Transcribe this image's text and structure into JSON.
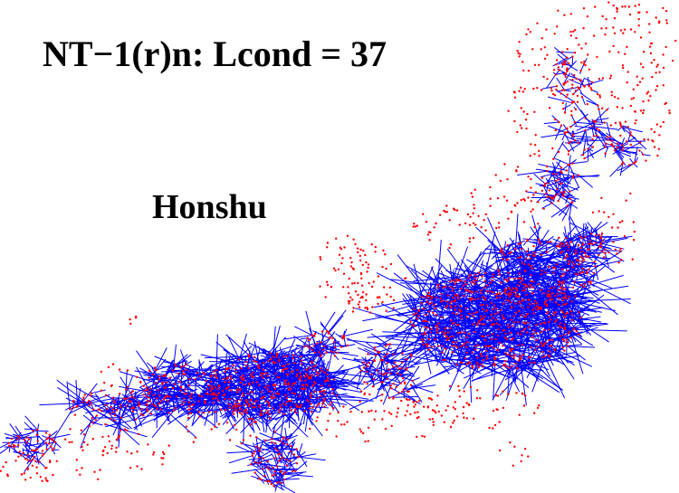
{
  "title": "NT−1(r)n: Lcond = 37",
  "region_label": "Honshu",
  "colors": {
    "background": "#ffffff",
    "node": "#ff0000",
    "edge": "#0000ff",
    "text": "#000000"
  },
  "legend": "none",
  "marks": {
    "nodes": "red dots (stations)",
    "edges": "blue line segments (connections)"
  }
}
